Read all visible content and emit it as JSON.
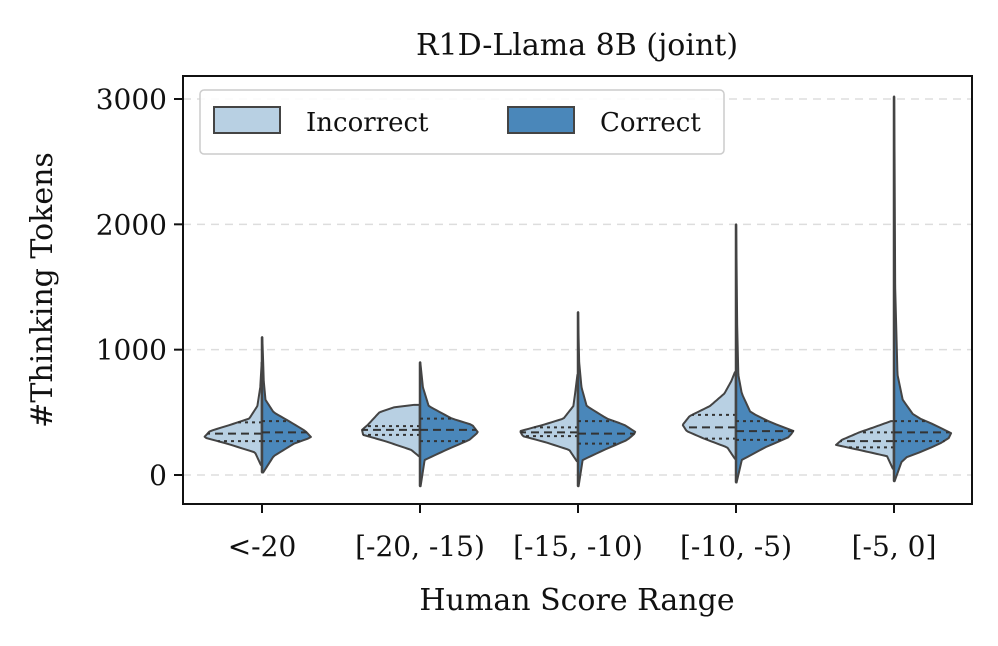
{
  "chart_data": {
    "type": "violin",
    "title": "R1D-Llama 8B (joint)",
    "xlabel": "Human Score Range",
    "ylabel": "#Thinking Tokens",
    "categories": [
      "<-20",
      "[-20, -15)",
      "[-15, -10)",
      "[-10, -5)",
      "[-5, 0]"
    ],
    "yticks": [
      0,
      1000,
      2000,
      3000
    ],
    "ylim": [
      -240,
      3200
    ],
    "grid": true,
    "legend": {
      "position": "top-left",
      "entries": [
        {
          "label": "Incorrect",
          "color": "#b3cde0"
        },
        {
          "label": "Correct",
          "color": "#4682b4"
        }
      ]
    },
    "series": [
      {
        "name": "Incorrect",
        "color": "#b8d0e3",
        "violins": [
          {
            "min": 80,
            "max": 900,
            "q1": 270,
            "median": 330,
            "q3": 420,
            "profile": [
              [
                80,
                0.02
              ],
              [
                180,
                0.12
              ],
              [
                250,
                0.6
              ],
              [
                300,
                1.0
              ],
              [
                350,
                0.9
              ],
              [
                400,
                0.55
              ],
              [
                450,
                0.22
              ],
              [
                550,
                0.08
              ],
              [
                700,
                0.03
              ],
              [
                900,
                0.005
              ]
            ]
          },
          {
            "min": 150,
            "max": 560,
            "q1": 320,
            "median": 360,
            "q3": 390,
            "profile": [
              [
                150,
                0.02
              ],
              [
                200,
                0.15
              ],
              [
                270,
                0.6
              ],
              [
                320,
                0.98
              ],
              [
                360,
                1.0
              ],
              [
                400,
                0.9
              ],
              [
                450,
                0.8
              ],
              [
                500,
                0.7
              ],
              [
                540,
                0.45
              ],
              [
                560,
                0.1
              ]
            ]
          },
          {
            "min": 110,
            "max": 800,
            "q1": 310,
            "median": 340,
            "q3": 380,
            "profile": [
              [
                110,
                0.02
              ],
              [
                200,
                0.15
              ],
              [
                260,
                0.55
              ],
              [
                310,
                0.95
              ],
              [
                350,
                1.0
              ],
              [
                400,
                0.6
              ],
              [
                450,
                0.25
              ],
              [
                550,
                0.08
              ],
              [
                650,
                0.05
              ],
              [
                800,
                0.01
              ]
            ]
          },
          {
            "min": 130,
            "max": 820,
            "q1": 290,
            "median": 380,
            "q3": 480,
            "profile": [
              [
                130,
                0.02
              ],
              [
                220,
                0.15
              ],
              [
                290,
                0.55
              ],
              [
                350,
                0.85
              ],
              [
                400,
                0.92
              ],
              [
                470,
                0.8
              ],
              [
                550,
                0.45
              ],
              [
                650,
                0.2
              ],
              [
                750,
                0.08
              ],
              [
                820,
                0.02
              ]
            ]
          },
          {
            "min": 50,
            "max": 430,
            "q1": 220,
            "median": 270,
            "q3": 340,
            "profile": [
              [
                50,
                0.02
              ],
              [
                150,
                0.12
              ],
              [
                200,
                0.6
              ],
              [
                240,
                1.0
              ],
              [
                280,
                0.9
              ],
              [
                340,
                0.6
              ],
              [
                380,
                0.35
              ],
              [
                430,
                0.05
              ]
            ]
          }
        ]
      },
      {
        "name": "Correct",
        "color": "#4a87ba",
        "violins": [
          {
            "min": 20,
            "max": 1100,
            "q1": 270,
            "median": 340,
            "q3": 430,
            "profile": [
              [
                20,
                0.02
              ],
              [
                150,
                0.2
              ],
              [
                250,
                0.55
              ],
              [
                300,
                0.85
              ],
              [
                350,
                0.75
              ],
              [
                420,
                0.5
              ],
              [
                500,
                0.2
              ],
              [
                600,
                0.06
              ],
              [
                750,
                0.03
              ],
              [
                900,
                0.02
              ],
              [
                1100,
                0.005
              ]
            ]
          },
          {
            "min": -90,
            "max": 900,
            "q1": 270,
            "median": 360,
            "q3": 450,
            "profile": [
              [
                -90,
                0.01
              ],
              [
                120,
                0.08
              ],
              [
                200,
                0.45
              ],
              [
                280,
                0.85
              ],
              [
                340,
                1.0
              ],
              [
                400,
                0.9
              ],
              [
                450,
                0.55
              ],
              [
                550,
                0.15
              ],
              [
                700,
                0.05
              ],
              [
                900,
                0.005
              ]
            ]
          },
          {
            "min": -90,
            "max": 1300,
            "q1": 250,
            "median": 330,
            "q3": 430,
            "profile": [
              [
                -90,
                0.01
              ],
              [
                120,
                0.08
              ],
              [
                200,
                0.45
              ],
              [
                280,
                0.85
              ],
              [
                340,
                1.0
              ],
              [
                400,
                0.8
              ],
              [
                450,
                0.5
              ],
              [
                550,
                0.15
              ],
              [
                700,
                0.06
              ],
              [
                900,
                0.02
              ],
              [
                1100,
                0.01
              ],
              [
                1300,
                0.003
              ]
            ]
          },
          {
            "min": -60,
            "max": 2000,
            "q1": 280,
            "median": 350,
            "q3": 430,
            "profile": [
              [
                -60,
                0.01
              ],
              [
                120,
                0.1
              ],
              [
                220,
                0.5
              ],
              [
                300,
                0.9
              ],
              [
                350,
                1.0
              ],
              [
                420,
                0.6
              ],
              [
                500,
                0.25
              ],
              [
                650,
                0.1
              ],
              [
                800,
                0.04
              ],
              [
                1200,
                0.02
              ],
              [
                2000,
                0.003
              ]
            ]
          },
          {
            "min": -50,
            "max": 3020,
            "q1": 270,
            "median": 340,
            "q3": 430,
            "profile": [
              [
                -50,
                0.01
              ],
              [
                130,
                0.15
              ],
              [
                200,
                0.55
              ],
              [
                280,
                0.92
              ],
              [
                330,
                1.0
              ],
              [
                400,
                0.7
              ],
              [
                470,
                0.35
              ],
              [
                600,
                0.15
              ],
              [
                800,
                0.06
              ],
              [
                1500,
                0.02
              ],
              [
                2500,
                0.01
              ],
              [
                3020,
                0.003
              ]
            ]
          }
        ]
      }
    ]
  }
}
